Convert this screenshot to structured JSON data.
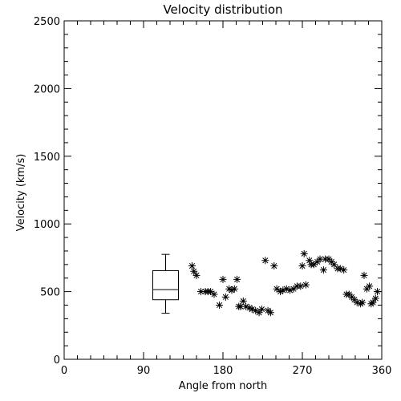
{
  "chart_data": {
    "type": "scatter",
    "title": "Velocity distribution",
    "xlabel": "Angle from north",
    "ylabel": "Velocity (km/s)",
    "xlim": [
      0,
      360
    ],
    "ylim": [
      0,
      2500
    ],
    "x_ticks": [
      0,
      90,
      180,
      270,
      360
    ],
    "y_ticks": [
      0,
      500,
      1000,
      1500,
      2000,
      2500
    ],
    "x_tick_labels": [
      "0",
      "90",
      "180",
      "270",
      "360"
    ],
    "y_tick_labels": [
      "0",
      "500",
      "1000",
      "1500",
      "2000",
      "2500"
    ],
    "marker": "asterisk",
    "color": "#000000",
    "grid": false,
    "boxplot": {
      "x": 115,
      "min": 340,
      "q1": 440,
      "median": 515,
      "q3": 655,
      "max": 775
    },
    "series": [
      {
        "points": [
          [
            145,
            690
          ],
          [
            147,
            650
          ],
          [
            150,
            620
          ],
          [
            155,
            500
          ],
          [
            160,
            500
          ],
          [
            163,
            500
          ],
          [
            166,
            500
          ],
          [
            170,
            480
          ],
          [
            176,
            400
          ],
          [
            180,
            590
          ],
          [
            183,
            460
          ],
          [
            187,
            520
          ],
          [
            190,
            510
          ],
          [
            193,
            520
          ],
          [
            196,
            590
          ],
          [
            198,
            390
          ],
          [
            200,
            390
          ],
          [
            203,
            430
          ],
          [
            206,
            390
          ],
          [
            210,
            380
          ],
          [
            213,
            370
          ],
          [
            217,
            360
          ],
          [
            221,
            345
          ],
          [
            224,
            370
          ],
          [
            228,
            730
          ],
          [
            231,
            360
          ],
          [
            234,
            345
          ],
          [
            238,
            690
          ],
          [
            241,
            520
          ],
          [
            245,
            500
          ],
          [
            248,
            510
          ],
          [
            252,
            520
          ],
          [
            256,
            510
          ],
          [
            260,
            520
          ],
          [
            264,
            540
          ],
          [
            268,
            540
          ],
          [
            270,
            690
          ],
          [
            272,
            780
          ],
          [
            274,
            550
          ],
          [
            278,
            730
          ],
          [
            280,
            700
          ],
          [
            283,
            700
          ],
          [
            287,
            720
          ],
          [
            290,
            740
          ],
          [
            294,
            660
          ],
          [
            296,
            740
          ],
          [
            300,
            740
          ],
          [
            303,
            720
          ],
          [
            306,
            700
          ],
          [
            310,
            670
          ],
          [
            313,
            670
          ],
          [
            317,
            660
          ],
          [
            320,
            480
          ],
          [
            323,
            480
          ],
          [
            326,
            460
          ],
          [
            329,
            440
          ],
          [
            332,
            420
          ],
          [
            336,
            410
          ],
          [
            338,
            420
          ],
          [
            340,
            620
          ],
          [
            343,
            520
          ],
          [
            346,
            540
          ],
          [
            348,
            410
          ],
          [
            350,
            420
          ],
          [
            353,
            450
          ],
          [
            355,
            500
          ]
        ]
      }
    ]
  }
}
